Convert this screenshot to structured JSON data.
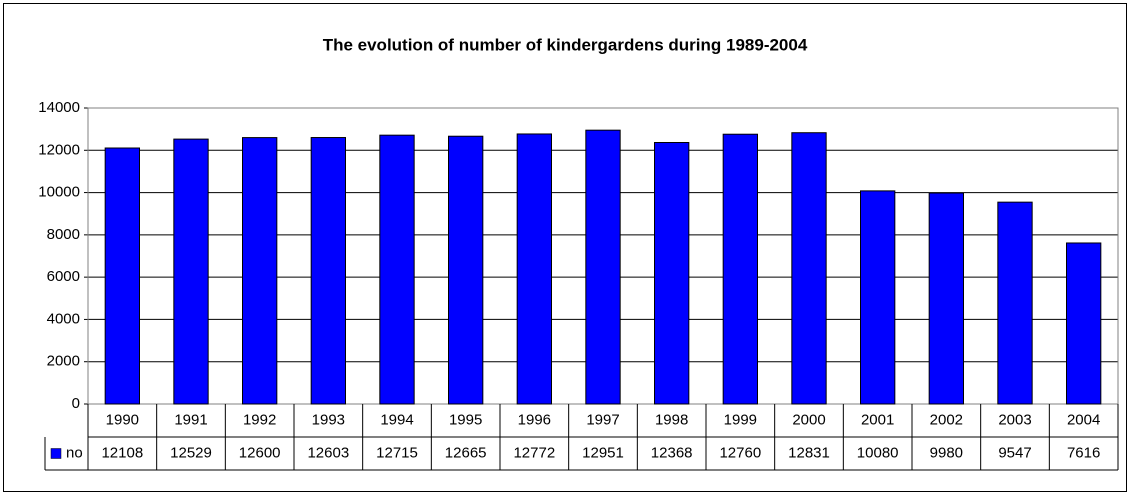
{
  "chart_data": {
    "type": "bar",
    "title": "The evolution of number of kindergardens during 1989-2004",
    "categories": [
      "1990",
      "1991",
      "1992",
      "1993",
      "1994",
      "1995",
      "1996",
      "1997",
      "1998",
      "1999",
      "2000",
      "2001",
      "2002",
      "2003",
      "2004"
    ],
    "series": [
      {
        "name": "no",
        "color": "#0000ff",
        "values": [
          12108,
          12529,
          12600,
          12603,
          12715,
          12665,
          12772,
          12951,
          12368,
          12760,
          12831,
          10080,
          9980,
          9547,
          7616
        ]
      }
    ],
    "ylim": [
      0,
      14000
    ],
    "yticks": [
      0,
      2000,
      4000,
      6000,
      8000,
      10000,
      12000,
      14000
    ],
    "grid": true
  }
}
